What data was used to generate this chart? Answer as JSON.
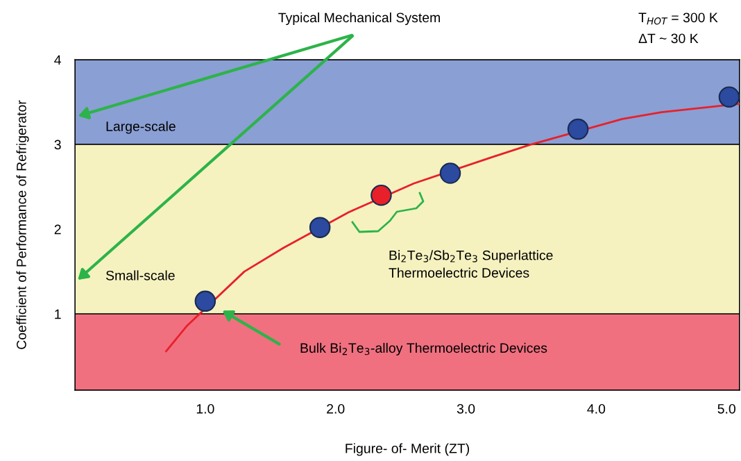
{
  "chart_data": {
    "type": "line",
    "xlabel": "Figure- of- Merit (ZT)",
    "ylabel": "Coefficient of Performance of Refrigerator",
    "series": [
      {
        "color": "#e8202a",
        "x": [
          0.7,
          0.86,
          1.3,
          1.6,
          2.1,
          2.6,
          3.2,
          3.5,
          4.2,
          4.5,
          5.1
        ],
        "values": [
          0.56,
          0.86,
          1.5,
          1.78,
          2.2,
          2.54,
          2.85,
          3.0,
          3.3,
          3.38,
          3.48
        ]
      },
      {
        "type": "scatter",
        "marker": "circle",
        "x": [
          1.0,
          1.88,
          2.35,
          2.88,
          3.86,
          5.02
        ],
        "values": [
          1.15,
          2.02,
          2.4,
          2.66,
          3.18,
          3.56
        ],
        "colors": [
          "#2b4aa0",
          "#2b4aa0",
          "#e8202a",
          "#2b4aa0",
          "#2b4aa0",
          "#2b4aa0"
        ]
      }
    ],
    "xlim": [
      0,
      5.1
    ],
    "ylim": [
      0.1,
      4
    ],
    "xticks": [
      {
        "value": 1,
        "label": "1.0"
      },
      {
        "value": 2,
        "label": "2.0"
      },
      {
        "value": 3,
        "label": "3.0"
      },
      {
        "value": 4,
        "label": "4.0"
      },
      {
        "value": 5,
        "label": "5.0"
      }
    ],
    "yticks": [
      1,
      2,
      3,
      4
    ],
    "bands": [
      {
        "axis": "y",
        "from": 3,
        "to": 4,
        "label": "Large-scale",
        "color": "#8a9fd4"
      },
      {
        "axis": "y",
        "from": 1,
        "to": 3,
        "label": "Small-scale",
        "color": "#f5f2c0"
      },
      {
        "axis": "y",
        "from": 0.1,
        "to": 1,
        "label": null,
        "color": "#f07080"
      }
    ],
    "annotations": [
      "Typical Mechanical System",
      "Bi$_{2}$Te$_{3}$/Sb$_{2}$Te$_{3}$ Superlattice\nThermoelectric Devices",
      "Bulk Bi$_{2}$Te$_{3}$-alloy Thermoelectric Devices",
      "T$_{HOT}$ = 300 K",
      "ΔT ~ 30 K"
    ]
  }
}
